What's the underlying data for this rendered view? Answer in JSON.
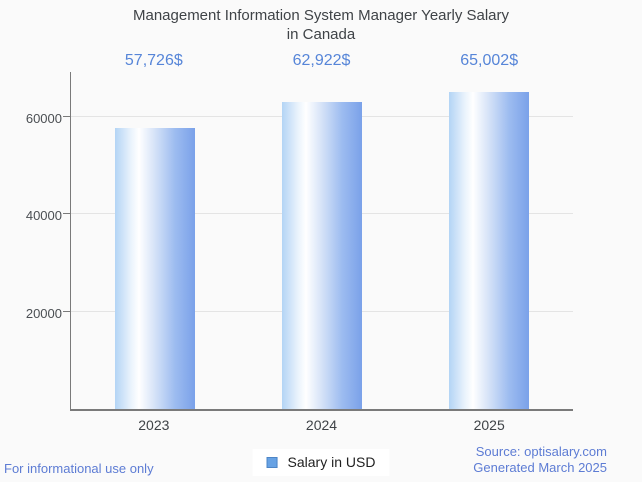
{
  "title": {
    "line1": "Management Information System Manager Yearly Salary",
    "line2": "in Canada"
  },
  "chart_data": {
    "type": "bar",
    "title": "Management Information System Manager Yearly Salary in Canada",
    "categories": [
      "2023",
      "2024",
      "2025"
    ],
    "values": [
      57726,
      62922,
      65002
    ],
    "value_labels": [
      "57,726$",
      "62,922$",
      "65,002$"
    ],
    "series": [
      {
        "name": "Salary in USD",
        "values": [
          57726,
          62922,
          65002
        ]
      }
    ],
    "xlabel": "",
    "ylabel": "",
    "ylim": [
      0,
      69550
    ],
    "yticks": [
      20000,
      40000,
      60000
    ],
    "ytick_labels": [
      "20000",
      "40000",
      "60000"
    ],
    "grid": true,
    "legend_position": "bottom",
    "bar_color_gradient": [
      "#b3d4f5",
      "#ffffff",
      "#7aa1e9"
    ],
    "value_label_color": "#5685d8"
  },
  "legend": {
    "label": "Salary in USD",
    "swatch_color": "#67a2e4"
  },
  "footer": {
    "left": "For informational use only",
    "source_line": "Source: optisalary.com",
    "generated_line": "Generated March 2025"
  }
}
